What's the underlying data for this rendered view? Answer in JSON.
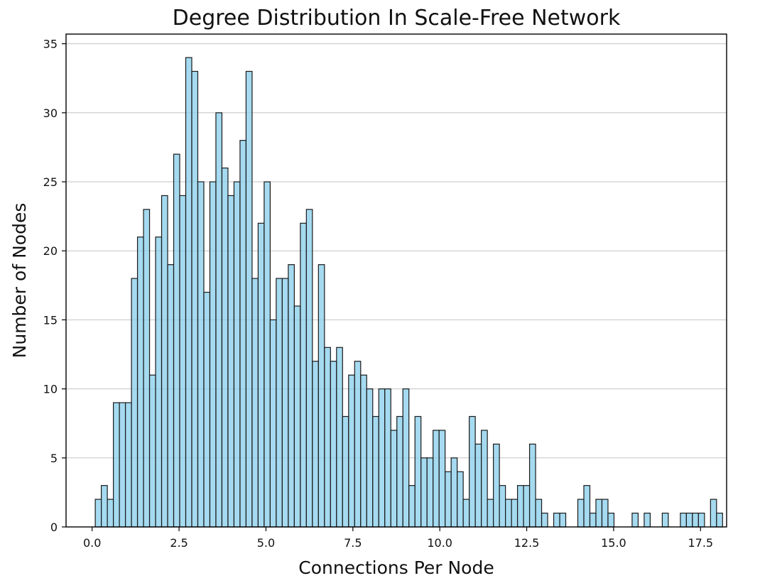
{
  "chart_data": {
    "type": "bar",
    "title": "Degree Distribution In Scale-Free Network",
    "xlabel": "Connections Per Node",
    "ylabel": "Number of Nodes",
    "xlim": [
      -0.75,
      18.25
    ],
    "ylim": [
      0,
      35.7
    ],
    "xticks": [
      0.0,
      2.5,
      5.0,
      7.5,
      10.0,
      12.5,
      15.0,
      17.5
    ],
    "xtick_labels": [
      "0.0",
      "2.5",
      "5.0",
      "7.5",
      "10.0",
      "12.5",
      "15.0",
      "17.5"
    ],
    "yticks": [
      0,
      5,
      10,
      15,
      20,
      25,
      30,
      35
    ],
    "ytick_labels": [
      "0",
      "5",
      "10",
      "15",
      "20",
      "25",
      "30",
      "35"
    ],
    "grid": "y",
    "bar_color": "#87ceeb",
    "edge_color": "#1a1a1a",
    "bin_start": 0.09,
    "bin_width": 0.1735,
    "values": [
      2,
      3,
      2,
      9,
      9,
      9,
      18,
      21,
      23,
      11,
      21,
      24,
      19,
      27,
      24,
      34,
      33,
      25,
      17,
      25,
      30,
      26,
      24,
      25,
      28,
      33,
      18,
      22,
      25,
      15,
      18,
      18,
      19,
      16,
      22,
      23,
      12,
      19,
      13,
      12,
      13,
      8,
      11,
      12,
      11,
      10,
      8,
      10,
      10,
      7,
      8,
      10,
      3,
      8,
      5,
      5,
      7,
      7,
      4,
      5,
      4,
      2,
      8,
      6,
      7,
      2,
      6,
      3,
      2,
      2,
      3,
      3,
      6,
      2,
      1,
      0,
      1,
      1,
      0,
      0,
      2,
      3,
      1,
      2,
      2,
      1,
      0,
      0,
      0,
      1,
      0,
      1,
      0,
      0,
      1,
      0,
      0,
      1,
      1,
      1,
      1,
      0,
      2,
      1
    ]
  }
}
